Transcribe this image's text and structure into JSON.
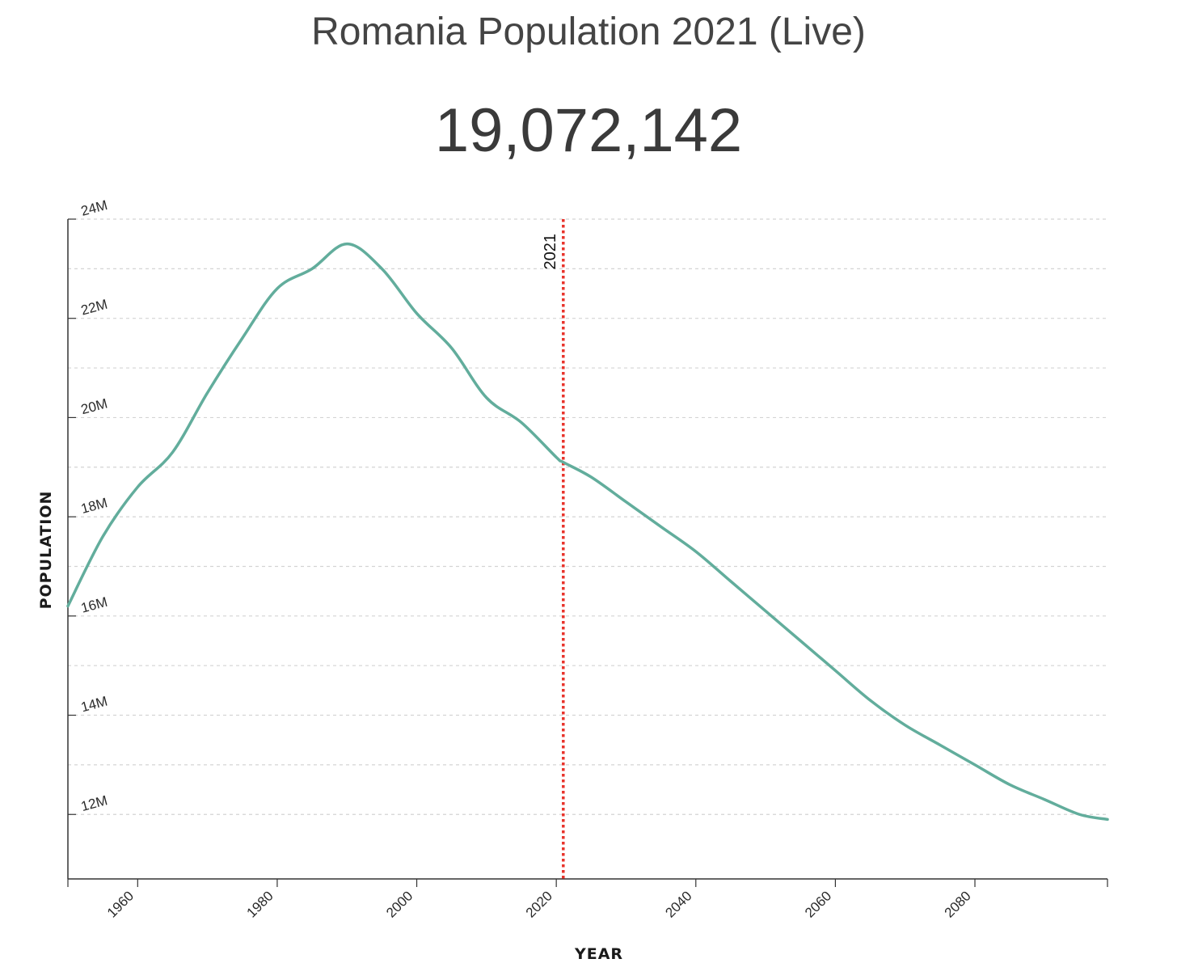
{
  "page": {
    "title": "Romania Population 2021 (Live)",
    "live_count": "19,072,142"
  },
  "colors": {
    "line": "#62ad9c",
    "marker": "#e8322a",
    "grid": "#d4d4d4",
    "axis": "#333333",
    "text": "#444444"
  },
  "chart_data": {
    "type": "line",
    "title": "",
    "xlabel": "YEAR",
    "ylabel": "POPULATION",
    "xlim": [
      1950,
      2099
    ],
    "ylim": [
      10.7,
      23.7
    ],
    "y_unit": "millions",
    "x_ticks": [
      1960,
      1980,
      2000,
      2020,
      2040,
      2060,
      2080
    ],
    "y_ticks": [
      {
        "value": 12,
        "label": "12M"
      },
      {
        "value": 14,
        "label": "14M"
      },
      {
        "value": 16,
        "label": "16M"
      },
      {
        "value": 18,
        "label": "18M"
      },
      {
        "value": 20,
        "label": "20M"
      },
      {
        "value": 22,
        "label": "22M"
      },
      {
        "value": 24,
        "label": "24M"
      }
    ],
    "grid": true,
    "marker": {
      "x": 2021,
      "label": "2021"
    },
    "series": [
      {
        "name": "",
        "points": [
          [
            1950,
            16.2
          ],
          [
            1955,
            17.6
          ],
          [
            1960,
            18.6
          ],
          [
            1965,
            19.3
          ],
          [
            1970,
            20.5
          ],
          [
            1975,
            21.6
          ],
          [
            1980,
            22.6
          ],
          [
            1985,
            23.0
          ],
          [
            1990,
            23.5
          ],
          [
            1995,
            23.0
          ],
          [
            2000,
            22.1
          ],
          [
            2005,
            21.4
          ],
          [
            2010,
            20.4
          ],
          [
            2015,
            19.9
          ],
          [
            2020,
            19.2
          ],
          [
            2021,
            19.1
          ],
          [
            2025,
            18.8
          ],
          [
            2030,
            18.3
          ],
          [
            2035,
            17.8
          ],
          [
            2040,
            17.3
          ],
          [
            2045,
            16.7
          ],
          [
            2050,
            16.1
          ],
          [
            2055,
            15.5
          ],
          [
            2060,
            14.9
          ],
          [
            2065,
            14.3
          ],
          [
            2070,
            13.8
          ],
          [
            2075,
            13.4
          ],
          [
            2080,
            13.0
          ],
          [
            2085,
            12.6
          ],
          [
            2090,
            12.3
          ],
          [
            2095,
            12.0
          ],
          [
            2099,
            11.9
          ]
        ]
      }
    ]
  }
}
